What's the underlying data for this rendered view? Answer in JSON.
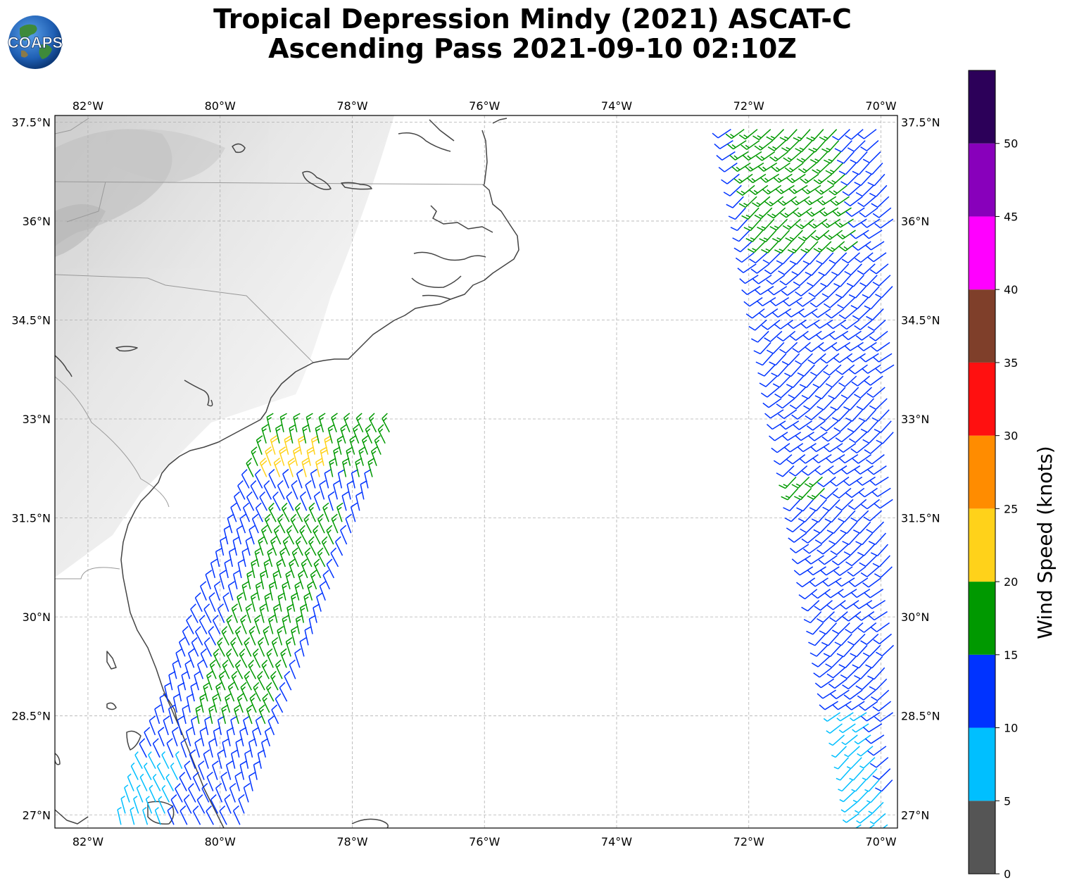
{
  "title_line1": "Tropical Depression Mindy (2021) ASCAT-C",
  "title_line2": "Ascending Pass 2021-09-10 02:10Z",
  "logo_text": "COAPS",
  "longitude_ticks": [
    "82°W",
    "80°W",
    "78°W",
    "76°W",
    "74°W",
    "72°W",
    "70°W"
  ],
  "latitude_ticks": [
    "37.5°N",
    "36°N",
    "34.5°N",
    "33°N",
    "31.5°N",
    "30°N",
    "28.5°N",
    "27°N"
  ],
  "lon_values": [
    -82,
    -80,
    -78,
    -76,
    -74,
    -72,
    -70
  ],
  "lat_values": [
    37.5,
    36,
    34.5,
    33,
    31.5,
    30,
    28.5,
    27
  ],
  "lon_range": [
    -82.5,
    -69.75
  ],
  "lat_range": [
    26.8,
    37.6
  ],
  "colorbar": {
    "label": "Wind Speed (knots)",
    "tick_labels": [
      "0",
      "5",
      "10",
      "15",
      "20",
      "25",
      "30",
      "35",
      "40",
      "45",
      "50"
    ],
    "range": [
      0,
      55
    ],
    "bins": [
      {
        "from": 0,
        "to": 5,
        "color": "#555555"
      },
      {
        "from": 5,
        "to": 10,
        "color": "#00bfff"
      },
      {
        "from": 10,
        "to": 15,
        "color": "#0033ff"
      },
      {
        "from": 15,
        "to": 20,
        "color": "#009900"
      },
      {
        "from": 20,
        "to": 25,
        "color": "#ffd21a"
      },
      {
        "from": 25,
        "to": 30,
        "color": "#ff8c00"
      },
      {
        "from": 30,
        "to": 35,
        "color": "#ff1010"
      },
      {
        "from": 35,
        "to": 40,
        "color": "#7f3f2a"
      },
      {
        "from": 40,
        "to": 45,
        "color": "#ff00ff"
      },
      {
        "from": 45,
        "to": 50,
        "color": "#8800bb"
      },
      {
        "from": 50,
        "to": 55,
        "color": "#2c0059"
      }
    ]
  },
  "colors": {
    "coastline": "#444444",
    "border": "#999999",
    "gridline": "#b0b0b0"
  },
  "wind_swaths": [
    {
      "name": "west-swath",
      "lat_range": [
        26.85,
        32.9
      ],
      "west_edge_lon": [
        -81.5,
        -79.2
      ],
      "width_deg": 1.9,
      "speed_regions": [
        {
          "lat_range": [
            32.0,
            32.6
          ],
          "lon_offset": [
            0.1,
            1.1
          ],
          "speed_kt": 21
        },
        {
          "lat_range": [
            32.0,
            32.9
          ],
          "lon_offset": [
            0.0,
            1.9
          ],
          "speed_kt": 17
        },
        {
          "lat_range": [
            28.3,
            31.5
          ],
          "lon_offset": [
            0.6,
            1.6
          ],
          "speed_kt": 16
        },
        {
          "lat_range": [
            26.85,
            27.8
          ],
          "lon_offset": [
            0.0,
            0.7
          ],
          "speed_kt": 8
        },
        {
          "lat_range": [
            26.85,
            32.9
          ],
          "lon_offset": [
            0.0,
            1.9
          ],
          "speed_kt": 12
        }
      ],
      "direction_deg": 110
    },
    {
      "name": "east-swath",
      "lat_range": [
        26.85,
        37.55
      ],
      "west_edge_lon": [
        -70.3,
        -72.3
      ],
      "width_deg": 2.3,
      "speed_regions": [
        {
          "lat_range": [
            35.6,
            37.55
          ],
          "lon_offset": [
            0.2,
            1.7
          ],
          "speed_kt": 17
        },
        {
          "lat_range": [
            31.9,
            32.2
          ],
          "lon_offset": [
            0.0,
            0.6
          ],
          "speed_kt": 16
        },
        {
          "lat_range": [
            26.85,
            28.6
          ],
          "lon_offset": [
            0.0,
            0.6
          ],
          "speed_kt": 8
        },
        {
          "lat_range": [
            26.85,
            37.55
          ],
          "lon_offset": [
            0.0,
            2.3
          ],
          "speed_kt": 13
        }
      ],
      "direction_deg": 220
    }
  ]
}
